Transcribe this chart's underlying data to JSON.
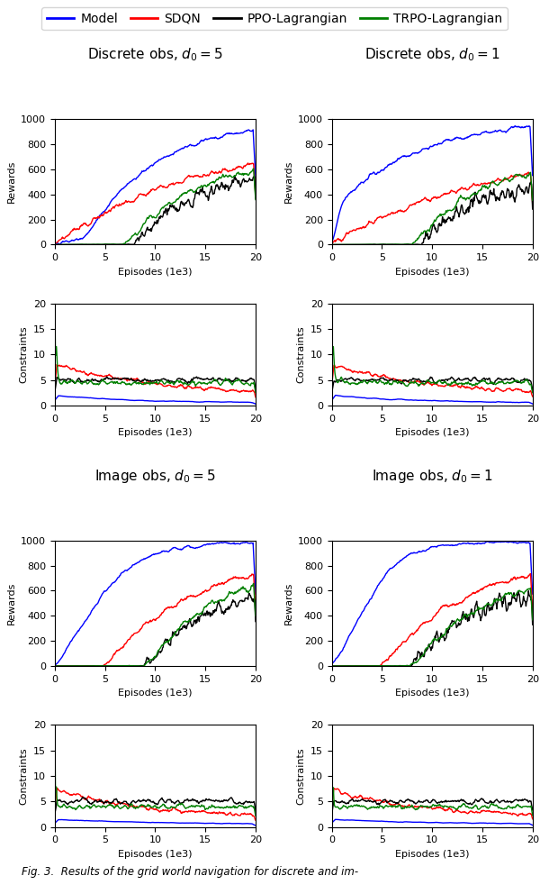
{
  "legend_labels": [
    "Model",
    "SDQN",
    "PPO-Lagrangian",
    "TRPO-Lagrangian"
  ],
  "legend_colors": [
    "#0000ff",
    "#ff0000",
    "#000000",
    "#008000"
  ],
  "titles": [
    [
      "Discrete obs, $d_0 = 5$",
      "Discrete obs, $d_0 = 1$"
    ],
    [
      "Image obs, $d_0 = 5$",
      "Image obs, $d_0 = 1$"
    ]
  ],
  "xlabel": "Episodes (1e3)",
  "ylabel_reward": "Rewards",
  "ylabel_constraint": "Constraints",
  "reward_ylim": [
    0,
    1000
  ],
  "reward_yticks": [
    0,
    200,
    400,
    600,
    800,
    1000
  ],
  "constraint_ylim": [
    0,
    20
  ],
  "constraint_yticks": [
    0,
    5,
    10,
    15,
    20
  ],
  "xlim": [
    0,
    20
  ],
  "xticks": [
    0,
    5,
    10,
    15,
    20
  ],
  "n_points": 400,
  "figsize": [
    6.1,
    9.92
  ],
  "dpi": 100,
  "caption": "Fig. 3.  Results of the grid world navigation for discrete and im-"
}
